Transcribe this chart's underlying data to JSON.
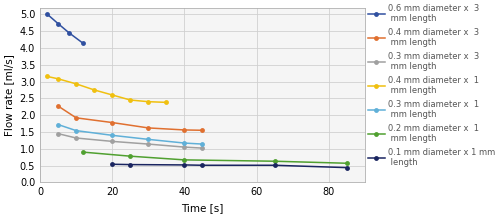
{
  "series": [
    {
      "label": "0.6 mm diameter x  3\n mm length",
      "color": "#3050a0",
      "x": [
        2,
        5,
        8,
        12
      ],
      "y": [
        5.0,
        4.72,
        4.45,
        4.13
      ]
    },
    {
      "label": "0.4 mm diameter x  3\n mm length",
      "color": "#e07030",
      "x": [
        5,
        10,
        20,
        30,
        40,
        45
      ],
      "y": [
        2.27,
        1.92,
        1.78,
        1.62,
        1.56,
        1.55
      ]
    },
    {
      "label": "0.3 mm diameter x  3\n mm length",
      "color": "#a0a0a0",
      "x": [
        5,
        10,
        20,
        30,
        40,
        45
      ],
      "y": [
        1.45,
        1.32,
        1.22,
        1.14,
        1.05,
        1.02
      ]
    },
    {
      "label": "0.4 mm diameter x  1\n mm length",
      "color": "#f0c010",
      "x": [
        2,
        5,
        10,
        15,
        20,
        25,
        30,
        35
      ],
      "y": [
        3.15,
        3.08,
        2.93,
        2.75,
        2.6,
        2.45,
        2.4,
        2.38
      ]
    },
    {
      "label": "0.3 mm diameter x  1\n mm length",
      "color": "#60b0d8",
      "x": [
        5,
        10,
        20,
        30,
        40,
        45
      ],
      "y": [
        1.72,
        1.54,
        1.4,
        1.28,
        1.17,
        1.14
      ]
    },
    {
      "label": "0.2 mm diameter x  1\n mm length",
      "color": "#50a030",
      "x": [
        12,
        25,
        40,
        65,
        85
      ],
      "y": [
        0.9,
        0.78,
        0.67,
        0.63,
        0.57
      ]
    },
    {
      "label": "0.1 mm diameter x 1 mm\n length",
      "color": "#1a2560",
      "x": [
        20,
        25,
        40,
        45,
        65,
        85
      ],
      "y": [
        0.54,
        0.53,
        0.52,
        0.51,
        0.51,
        0.44
      ]
    }
  ],
  "xlabel": "Time [s]",
  "ylabel": "Flow rate [ml/s]",
  "xlim": [
    0,
    90
  ],
  "ylim": [
    0,
    5.2
  ],
  "xticks": [
    0,
    20,
    40,
    60,
    80
  ],
  "yticks": [
    0,
    0.5,
    1.0,
    1.5,
    2.0,
    2.5,
    3.0,
    3.5,
    4.0,
    4.5,
    5.0
  ],
  "grid_color": "#d0d0d0",
  "background_color": "#ffffff",
  "plot_bg_color": "#f5f5f5"
}
